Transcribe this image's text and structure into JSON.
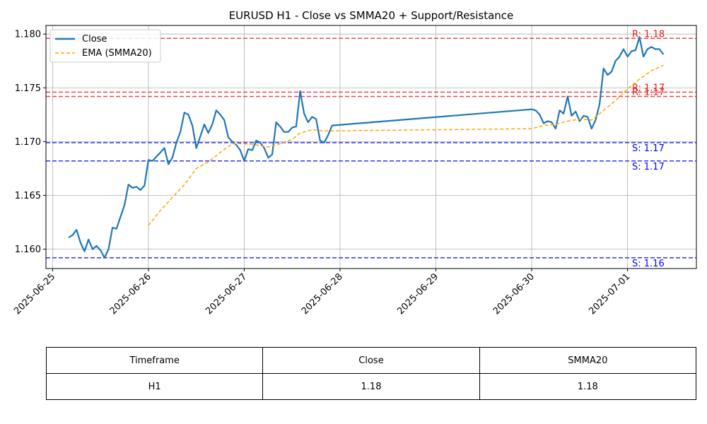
{
  "chart_data": {
    "type": "line",
    "title": "EURUSD H1 - Close vs SMMA20 + Support/Resistance",
    "xlabel": "",
    "ylabel": "",
    "xlim": [
      "2025-06-24T22:20",
      "2025-07-01T17:15"
    ],
    "ylim": [
      1.1582,
      1.1808
    ],
    "yticks": [
      1.16,
      1.165,
      1.17,
      1.175,
      1.18
    ],
    "ytick_labels": [
      "1.160",
      "1.165",
      "1.170",
      "1.175",
      "1.180"
    ],
    "xticks": [
      "2025-06-25",
      "2025-06-26",
      "2025-06-27",
      "2025-06-28",
      "2025-06-29",
      "2025-06-30",
      "2025-07-01"
    ],
    "grid": true,
    "legend": "upper-left",
    "colors": {
      "close": "#1f77b4",
      "ema": "#ffa500",
      "resistance": "#e41a1c",
      "support": "#0000ff"
    },
    "series": [
      {
        "name": "Close",
        "style": "solid",
        "points": [
          [
            "2025-06-25T04:00",
            1.1611
          ],
          [
            "2025-06-25T05:00",
            1.1613
          ],
          [
            "2025-06-25T06:00",
            1.1618
          ],
          [
            "2025-06-25T07:00",
            1.1606
          ],
          [
            "2025-06-25T08:00",
            1.1598
          ],
          [
            "2025-06-25T09:00",
            1.1609
          ],
          [
            "2025-06-25T10:00",
            1.16
          ],
          [
            "2025-06-25T11:00",
            1.1603
          ],
          [
            "2025-06-25T12:00",
            1.1599
          ],
          [
            "2025-06-25T13:00",
            1.1592
          ],
          [
            "2025-06-25T14:00",
            1.16
          ],
          [
            "2025-06-25T15:00",
            1.162
          ],
          [
            "2025-06-25T16:00",
            1.1619
          ],
          [
            "2025-06-25T17:00",
            1.163
          ],
          [
            "2025-06-25T18:00",
            1.1641
          ],
          [
            "2025-06-25T19:00",
            1.166
          ],
          [
            "2025-06-25T20:00",
            1.1657
          ],
          [
            "2025-06-25T21:00",
            1.1658
          ],
          [
            "2025-06-25T22:00",
            1.1655
          ],
          [
            "2025-06-25T23:00",
            1.1659
          ],
          [
            "2025-06-26T00:00",
            1.1683
          ],
          [
            "2025-06-26T01:00",
            1.1682
          ],
          [
            "2025-06-26T02:00",
            1.1686
          ],
          [
            "2025-06-26T03:00",
            1.169
          ],
          [
            "2025-06-26T04:00",
            1.1694
          ],
          [
            "2025-06-26T05:00",
            1.1679
          ],
          [
            "2025-06-26T06:00",
            1.1685
          ],
          [
            "2025-06-26T07:00",
            1.1699
          ],
          [
            "2025-06-26T08:00",
            1.1709
          ],
          [
            "2025-06-26T09:00",
            1.1727
          ],
          [
            "2025-06-26T10:00",
            1.1725
          ],
          [
            "2025-06-26T11:00",
            1.1715
          ],
          [
            "2025-06-26T12:00",
            1.1694
          ],
          [
            "2025-06-26T13:00",
            1.1705
          ],
          [
            "2025-06-26T14:00",
            1.1716
          ],
          [
            "2025-06-26T15:00",
            1.1708
          ],
          [
            "2025-06-26T16:00",
            1.1716
          ],
          [
            "2025-06-26T17:00",
            1.1729
          ],
          [
            "2025-06-26T18:00",
            1.1725
          ],
          [
            "2025-06-26T19:00",
            1.172
          ],
          [
            "2025-06-26T20:00",
            1.1704
          ],
          [
            "2025-06-26T21:00",
            1.17
          ],
          [
            "2025-06-26T22:00",
            1.1697
          ],
          [
            "2025-06-26T23:00",
            1.1692
          ],
          [
            "2025-06-27T00:00",
            1.1682
          ],
          [
            "2025-06-27T01:00",
            1.1693
          ],
          [
            "2025-06-27T02:00",
            1.1692
          ],
          [
            "2025-06-27T03:00",
            1.1701
          ],
          [
            "2025-06-27T04:00",
            1.1699
          ],
          [
            "2025-06-27T05:00",
            1.1694
          ],
          [
            "2025-06-27T06:00",
            1.1685
          ],
          [
            "2025-06-27T07:00",
            1.1688
          ],
          [
            "2025-06-27T08:00",
            1.1718
          ],
          [
            "2025-06-27T09:00",
            1.1714
          ],
          [
            "2025-06-27T10:00",
            1.1709
          ],
          [
            "2025-06-27T11:00",
            1.1709
          ],
          [
            "2025-06-27T12:00",
            1.1713
          ],
          [
            "2025-06-27T13:00",
            1.1714
          ],
          [
            "2025-06-27T14:00",
            1.1747
          ],
          [
            "2025-06-27T15:00",
            1.1726
          ],
          [
            "2025-06-27T16:00",
            1.1718
          ],
          [
            "2025-06-27T17:00",
            1.1723
          ],
          [
            "2025-06-27T18:00",
            1.1721
          ],
          [
            "2025-06-27T19:00",
            1.1701
          ],
          [
            "2025-06-27T20:00",
            1.1699
          ],
          [
            "2025-06-27T21:00",
            1.1706
          ],
          [
            "2025-06-27T22:00",
            1.1715
          ],
          [
            "2025-06-30T00:00",
            1.173
          ],
          [
            "2025-06-30T01:00",
            1.1729
          ],
          [
            "2025-06-30T02:00",
            1.1725
          ],
          [
            "2025-06-30T03:00",
            1.1717
          ],
          [
            "2025-06-30T04:00",
            1.1719
          ],
          [
            "2025-06-30T05:00",
            1.1718
          ],
          [
            "2025-06-30T06:00",
            1.1712
          ],
          [
            "2025-06-30T07:00",
            1.1729
          ],
          [
            "2025-06-30T08:00",
            1.1726
          ],
          [
            "2025-06-30T09:00",
            1.1742
          ],
          [
            "2025-06-30T10:00",
            1.1724
          ],
          [
            "2025-06-30T11:00",
            1.1728
          ],
          [
            "2025-06-30T12:00",
            1.1719
          ],
          [
            "2025-06-30T13:00",
            1.1724
          ],
          [
            "2025-06-30T14:00",
            1.1723
          ],
          [
            "2025-06-30T15:00",
            1.1712
          ],
          [
            "2025-06-30T16:00",
            1.172
          ],
          [
            "2025-06-30T17:00",
            1.1735
          ],
          [
            "2025-06-30T18:00",
            1.1768
          ],
          [
            "2025-06-30T19:00",
            1.1762
          ],
          [
            "2025-06-30T20:00",
            1.1765
          ],
          [
            "2025-06-30T21:00",
            1.1775
          ],
          [
            "2025-06-30T22:00",
            1.1779
          ],
          [
            "2025-06-30T23:00",
            1.1786
          ],
          [
            "2025-07-01T00:00",
            1.1779
          ],
          [
            "2025-07-01T01:00",
            1.1784
          ],
          [
            "2025-07-01T02:00",
            1.1785
          ],
          [
            "2025-07-01T03:00",
            1.1797
          ],
          [
            "2025-07-01T04:00",
            1.1779
          ],
          [
            "2025-07-01T05:00",
            1.1786
          ],
          [
            "2025-07-01T06:00",
            1.1788
          ],
          [
            "2025-07-01T07:00",
            1.1786
          ],
          [
            "2025-07-01T08:00",
            1.1786
          ],
          [
            "2025-07-01T09:00",
            1.1781
          ]
        ]
      },
      {
        "name": "EMA (SMMA20)",
        "style": "dashed",
        "points": [
          [
            "2025-06-26T00:00",
            1.1622
          ],
          [
            "2025-06-26T03:00",
            1.1636
          ],
          [
            "2025-06-26T06:00",
            1.1648
          ],
          [
            "2025-06-26T09:00",
            1.166
          ],
          [
            "2025-06-26T12:00",
            1.1675
          ],
          [
            "2025-06-26T15:00",
            1.1681
          ],
          [
            "2025-06-26T18:00",
            1.169
          ],
          [
            "2025-06-26T21:00",
            1.1698
          ],
          [
            "2025-06-27T00:00",
            1.1698
          ],
          [
            "2025-06-27T03:00",
            1.1697
          ],
          [
            "2025-06-27T06:00",
            1.1695
          ],
          [
            "2025-06-27T09:00",
            1.1698
          ],
          [
            "2025-06-27T12:00",
            1.1702
          ],
          [
            "2025-06-27T14:00",
            1.1708
          ],
          [
            "2025-06-27T17:00",
            1.1711
          ],
          [
            "2025-06-27T20:00",
            1.171
          ],
          [
            "2025-06-27T22:00",
            1.171
          ],
          [
            "2025-06-30T00:00",
            1.1712
          ],
          [
            "2025-06-30T03:00",
            1.1715
          ],
          [
            "2025-06-30T06:00",
            1.1716
          ],
          [
            "2025-06-30T09:00",
            1.1719
          ],
          [
            "2025-06-30T12:00",
            1.1721
          ],
          [
            "2025-06-30T15:00",
            1.172
          ],
          [
            "2025-06-30T18:00",
            1.1729
          ],
          [
            "2025-06-30T21:00",
            1.1738
          ],
          [
            "2025-07-01T00:00",
            1.1749
          ],
          [
            "2025-07-01T03:00",
            1.1758
          ],
          [
            "2025-07-01T06:00",
            1.1766
          ],
          [
            "2025-07-01T09:00",
            1.1771
          ]
        ]
      }
    ],
    "levels": [
      {
        "kind": "resistance",
        "value": 1.1796,
        "label": "R: 1.18"
      },
      {
        "kind": "resistance",
        "value": 1.1746,
        "label": "R: 1.17"
      },
      {
        "kind": "resistance",
        "value": 1.1742,
        "label": "R: 1.17"
      },
      {
        "kind": "support",
        "value": 1.1699,
        "label": "S: 1.17"
      },
      {
        "kind": "support",
        "value": 1.1682,
        "label": "S: 1.17"
      },
      {
        "kind": "support",
        "value": 1.1592,
        "label": "S: 1.16"
      }
    ]
  },
  "table": {
    "headers": [
      "Timeframe",
      "Close",
      "SMMA20"
    ],
    "rows": [
      [
        "H1",
        "1.18",
        "1.18"
      ]
    ]
  }
}
